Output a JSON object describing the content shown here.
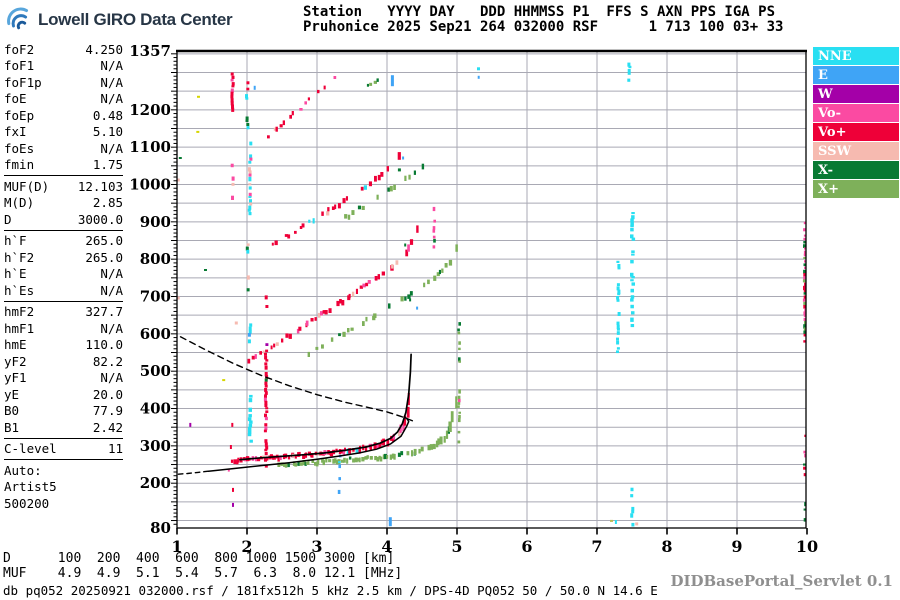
{
  "header": {
    "logo_text": "Lowell GIRO Data Center",
    "info_line1": "Station   YYYY DAY   DDD HHMMSS P1  FFS S AXN PPS IGA PS",
    "info_line2": "Pruhonice 2025 Sep21 264 032000 RSF      1 713 100 03+ 33"
  },
  "params": [
    {
      "label": "foF2",
      "value": "4.250"
    },
    {
      "label": "foF1",
      "value": "N/A"
    },
    {
      "label": "foF1p",
      "value": "N/A"
    },
    {
      "label": "foE",
      "value": "N/A"
    },
    {
      "label": "foEp",
      "value": "0.48"
    },
    {
      "label": "fxI",
      "value": "5.10"
    },
    {
      "label": "foEs",
      "value": "N/A"
    },
    {
      "label": "fmin",
      "value": "1.75"
    },
    {
      "divider": true
    },
    {
      "label": "MUF(D)",
      "value": "12.103"
    },
    {
      "label": "M(D)",
      "value": "2.85"
    },
    {
      "label": "D",
      "value": "3000.0"
    },
    {
      "divider": true
    },
    {
      "label": "h`F",
      "value": "265.0"
    },
    {
      "label": "h`F2",
      "value": "265.0"
    },
    {
      "label": "h`E",
      "value": "N/A"
    },
    {
      "label": "h`Es",
      "value": "N/A"
    },
    {
      "divider": true
    },
    {
      "label": "hmF2",
      "value": "327.7"
    },
    {
      "label": "hmF1",
      "value": "N/A"
    },
    {
      "label": "hmE",
      "value": "110.0"
    },
    {
      "label": "yF2",
      "value": "82.2"
    },
    {
      "label": "yF1",
      "value": "N/A"
    },
    {
      "label": "yE",
      "value": "20.0"
    },
    {
      "label": "B0",
      "value": "77.9"
    },
    {
      "label": "B1",
      "value": "2.42"
    },
    {
      "divider": true
    },
    {
      "label": "C-level",
      "value": "11"
    },
    {
      "divider": true
    },
    {
      "label": "Auto:",
      "value": ""
    },
    {
      "label": "Artist5",
      "value": ""
    },
    {
      "label": "500200",
      "value": ""
    }
  ],
  "legend": [
    {
      "label": "NNE",
      "color": "#29dff2"
    },
    {
      "label": "E",
      "color": "#3fa4f6"
    },
    {
      "label": "W",
      "color": "#a400a8"
    },
    {
      "label": "Vo-",
      "color": "#fb4aa2"
    },
    {
      "label": "Vo+",
      "color": "#ee0038"
    },
    {
      "label": "SSW",
      "color": "#f6bab0"
    },
    {
      "label": "X-",
      "color": "#087a33"
    },
    {
      "label": "X+",
      "color": "#7eb05a"
    }
  ],
  "footer": {
    "d_row": {
      "label": "D",
      "values": [
        "100",
        "200",
        "400",
        "600",
        "800",
        "1000",
        "1500",
        "3000"
      ],
      "unit": "[km]"
    },
    "muf_row": {
      "label": "MUF",
      "values": [
        "4.9",
        "4.9",
        "5.1",
        "5.4",
        "5.7",
        "6.3",
        "8.0",
        "12.1"
      ],
      "unit": "[MHz]"
    },
    "status": "db pq052 20250921 032000.rsf / 181fx512h 5 kHz 2.5 km / DPS-4D PQ052 50 / 50.0 N 14.6 E",
    "servlet": "DIDBasePortal_Servlet 0.1"
  },
  "chart_data": {
    "type": "scatter",
    "title": "Pruhonice ionogram 2025-09-21 032000 UT",
    "xlabel": "[MHz]",
    "ylabel": "[km]",
    "xlim": [
      1,
      10
    ],
    "ylim": [
      80,
      1357
    ],
    "x_ticks": [
      1,
      2,
      3,
      4,
      5,
      6,
      7,
      8,
      9,
      10
    ],
    "y_tick_labels": [
      1357,
      1200,
      1100,
      1000,
      900,
      800,
      700,
      600,
      500,
      400,
      300,
      200,
      80
    ],
    "grid": {
      "x_step_mhz": 1,
      "y_step_km": 50,
      "color": "#a9a9b4"
    },
    "colors": {
      "NNE": "#29dff2",
      "E": "#3fa4f6",
      "W": "#a400a8",
      "Vo-": "#fb4aa2",
      "Vo+": "#ee0038",
      "SSW": "#f6bab0",
      "X-": "#087a33",
      "X+": "#7eb05a",
      "Y": "#d6d600",
      "K": "#b9b955"
    },
    "traces": [
      {
        "name": "F-1hop-O",
        "f": [
          1.78,
          4.315
        ],
        "step": 0.03,
        "base": 261,
        "slope": 10,
        "cusp": [
          4.4,
          14
        ],
        "density": 0.93,
        "colors": [
          [
            "Vo+",
            0.78
          ],
          [
            "Vo-",
            0.12
          ],
          [
            "SSW",
            0.05
          ],
          [
            "NNE",
            0.05
          ]
        ]
      },
      {
        "name": "F-1hop-X",
        "f": [
          2.45,
          4.96
        ],
        "step": 0.033,
        "base": 249,
        "slope": 9,
        "cusp": [
          5.05,
          14
        ],
        "density": 0.85,
        "colors": [
          [
            "X+",
            0.8
          ],
          [
            "X-",
            0.2
          ]
        ]
      },
      {
        "name": "F-2hop-O",
        "f": [
          2.02,
          4.42
        ],
        "step": 0.038,
        "base": 532,
        "slope": 115,
        "cusp": [
          4.55,
          10
        ],
        "density": 0.62,
        "colors": [
          [
            "Vo+",
            0.72
          ],
          [
            "Vo-",
            0.16
          ],
          [
            "SSW",
            0.12
          ]
        ]
      },
      {
        "name": "F-2hop-X",
        "f": [
          2.85,
          5.0
        ],
        "step": 0.042,
        "base": 546,
        "slope": 105,
        "cusp": [
          5.15,
          10
        ],
        "density": 0.5,
        "colors": [
          [
            "X+",
            0.75
          ],
          [
            "X-",
            0.25
          ]
        ]
      },
      {
        "name": "F-3hop-O",
        "f": [
          2.36,
          4.18
        ],
        "step": 0.042,
        "base": 840,
        "slope": 112,
        "cusp": [
          4.35,
          8
        ],
        "density": 0.5,
        "colors": [
          [
            "Vo+",
            0.68
          ],
          [
            "Vo-",
            0.18
          ],
          [
            "SSW",
            0.07
          ],
          [
            "NNE",
            0.07
          ]
        ]
      },
      {
        "name": "F-3hop-X",
        "f": [
          3.3,
          4.5
        ],
        "step": 0.05,
        "base": 900,
        "slope": 112,
        "cusp": [
          4.9,
          8
        ],
        "density": 0.42,
        "colors": [
          [
            "X+",
            0.7
          ],
          [
            "X-",
            0.3
          ]
        ]
      },
      {
        "name": "F-4hop-O",
        "f": [
          2.28,
          3.24
        ],
        "step": 0.045,
        "base": 1135,
        "slope": 163,
        "cusp": null,
        "density": 0.5,
        "colors": [
          [
            "Vo+",
            0.62
          ],
          [
            "Vo-",
            0.22
          ],
          [
            "SSW",
            0.16
          ]
        ]
      },
      {
        "name": "F-4hop-X",
        "f": [
          3.45,
          3.98
        ],
        "step": 0.05,
        "base": 1238,
        "slope": 125,
        "cusp": null,
        "density": 0.5,
        "colors": [
          [
            "X+",
            0.72
          ],
          [
            "X-",
            0.28
          ]
        ]
      }
    ],
    "spread_columns": [
      {
        "f": 1.79,
        "km": [
          1200,
          1300
        ],
        "density": 0.9,
        "w": 3,
        "colors": [
          [
            "Vo+",
            0.85
          ],
          [
            "Vo-",
            0.15
          ]
        ]
      },
      {
        "f": 1.79,
        "km": [
          920,
          1090
        ],
        "density": 0.38,
        "w": 3,
        "colors": [
          [
            "SSW",
            0.5
          ],
          [
            "Vo-",
            0.5
          ]
        ]
      },
      {
        "f": 2.0,
        "km": [
          1150,
          1285
        ],
        "density": 0.6,
        "w": 3,
        "colors": [
          [
            "X-",
            0.5
          ],
          [
            "NNE",
            0.3
          ],
          [
            "Vo+",
            0.2
          ]
        ]
      },
      {
        "f": 2.04,
        "km": [
          920,
          1115
        ],
        "density": 0.7,
        "w": 3,
        "colors": [
          [
            "NNE",
            0.7
          ],
          [
            "SSW",
            0.2
          ],
          [
            "Vo-",
            0.1
          ]
        ]
      },
      {
        "f": 2.01,
        "km": [
          690,
          885
        ],
        "density": 0.35,
        "w": 3,
        "colors": [
          [
            "SSW",
            0.4
          ],
          [
            "X-",
            0.3
          ],
          [
            "NNE",
            0.3
          ]
        ]
      },
      {
        "f": 2.04,
        "km": [
          570,
          645
        ],
        "density": 0.5,
        "w": 3,
        "colors": [
          [
            "NNE",
            0.8
          ],
          [
            "E",
            0.2
          ]
        ]
      },
      {
        "f": 2.04,
        "km": [
          315,
          445
        ],
        "density": 0.85,
        "w": 3.5,
        "colors": [
          [
            "NNE",
            0.9
          ],
          [
            "E",
            0.1
          ]
        ]
      },
      {
        "f": 2.27,
        "km": [
          235,
          575
        ],
        "density": 0.8,
        "w": 3,
        "colors": [
          [
            "Vo+",
            0.8
          ],
          [
            "Vo-",
            0.12
          ],
          [
            "W",
            0.04
          ],
          [
            "X-",
            0.04
          ]
        ]
      },
      {
        "f": 2.27,
        "km": [
          575,
          720
        ],
        "density": 0.25,
        "w": 3,
        "colors": [
          [
            "Vo+",
            0.6
          ],
          [
            "Vo-",
            0.4
          ]
        ]
      },
      {
        "f": 3.32,
        "km": [
          165,
          285
        ],
        "density": 0.5,
        "w": 2.6,
        "colors": [
          [
            "E",
            0.5
          ],
          [
            "NNE",
            0.5
          ]
        ]
      },
      {
        "f": 4.67,
        "km": [
          830,
          940
        ],
        "density": 0.6,
        "w": 2.6,
        "colors": [
          [
            "Vo-",
            0.7
          ],
          [
            "X-",
            0.3
          ]
        ]
      },
      {
        "f": 5.03,
        "km": [
          300,
          640
        ],
        "density": 0.45,
        "w": 2.6,
        "colors": [
          [
            "X+",
            0.75
          ],
          [
            "Vo-",
            0.15
          ],
          [
            "X-",
            0.1
          ]
        ]
      },
      {
        "f": 7.3,
        "km": [
          550,
          830
        ],
        "density": 0.45,
        "w": 3,
        "colors": [
          [
            "NNE",
            0.9
          ],
          [
            "W",
            0.1
          ]
        ]
      },
      {
        "f": 7.5,
        "km": [
          620,
          935
        ],
        "density": 0.6,
        "w": 3.5,
        "colors": [
          [
            "NNE",
            1
          ]
        ]
      },
      {
        "f": 7.46,
        "km": [
          1280,
          1335
        ],
        "density": 0.5,
        "w": 3,
        "colors": [
          [
            "NNE",
            1
          ]
        ]
      },
      {
        "f": 7.5,
        "km": [
          82,
          188
        ],
        "density": 0.5,
        "w": 3,
        "colors": [
          [
            "NNE",
            1
          ]
        ]
      },
      {
        "f": 9.97,
        "km": [
          578,
          900
        ],
        "density": 0.95,
        "w": 3,
        "colors": [
          [
            "Vo-",
            0.4
          ],
          [
            "X-",
            0.25
          ],
          [
            "Vo+",
            0.2
          ],
          [
            "X+",
            0.15
          ]
        ]
      },
      {
        "f": 9.97,
        "km": [
          205,
          330
        ],
        "density": 0.4,
        "w": 3,
        "colors": [
          [
            "Vo-",
            0.4
          ],
          [
            "X-",
            0.3
          ],
          [
            "Vo+",
            0.3
          ]
        ]
      },
      {
        "f": 9.97,
        "km": [
          82,
          158
        ],
        "density": 0.5,
        "w": 3,
        "colors": [
          [
            "Vo+",
            0.5
          ],
          [
            "X-",
            0.5
          ]
        ]
      }
    ],
    "specks": [
      [
        4.07,
        1278,
        "E",
        3,
        11
      ],
      [
        2.11,
        1259,
        "E",
        2,
        4
      ],
      [
        1.3,
        1235,
        "Y",
        3,
        2
      ],
      [
        1.29,
        1141,
        "Y",
        3,
        2
      ],
      [
        1.66,
        476,
        "Y",
        3,
        2
      ],
      [
        7.2,
        99,
        "K",
        3,
        2
      ],
      [
        7.27,
        96,
        "NNE",
        2,
        4
      ],
      [
        7.56,
        91,
        "SSW",
        3,
        3
      ],
      [
        1.04,
        1071,
        "X-",
        3,
        2
      ],
      [
        1.4,
        771,
        "X-",
        3,
        2
      ],
      [
        4.17,
        1039,
        "X-",
        3,
        3
      ],
      [
        4.23,
        1071,
        "E",
        2,
        3
      ],
      [
        1.01,
        1012,
        "SSW",
        3,
        3
      ],
      [
        1.01,
        696,
        "SSW",
        3,
        3
      ],
      [
        1.84,
        629,
        "SSW",
        3,
        3
      ],
      [
        1.19,
        356,
        "W",
        2,
        4
      ],
      [
        1.8,
        142,
        "W",
        2,
        4
      ],
      [
        1.79,
        356,
        "Vo+",
        2,
        4
      ],
      [
        1.77,
        297,
        "Vo+",
        2,
        4
      ],
      [
        1.8,
        182,
        "Vo+",
        2,
        4
      ],
      [
        1.74,
        235,
        "Vo-",
        2,
        3
      ],
      [
        4.04,
        97,
        "E",
        3,
        9
      ],
      [
        4.43,
        669,
        "E",
        2,
        3
      ],
      [
        4.33,
        691,
        "X-",
        2,
        3
      ],
      [
        4.26,
        838,
        "X-",
        2,
        3
      ],
      [
        5.3,
        1310,
        "NNE",
        3,
        3
      ],
      [
        5.31,
        1287,
        "E",
        2,
        3
      ]
    ],
    "curves": {
      "fitted_trace": [
        [
          1.9,
          263
        ],
        [
          2.2,
          268
        ],
        [
          2.5,
          272
        ],
        [
          2.8,
          276
        ],
        [
          3.1,
          281
        ],
        [
          3.4,
          288
        ],
        [
          3.7,
          297
        ],
        [
          3.9,
          307
        ],
        [
          4.05,
          320
        ],
        [
          4.15,
          337
        ],
        [
          4.22,
          360
        ],
        [
          4.27,
          390
        ],
        [
          4.31,
          438
        ],
        [
          4.335,
          498
        ],
        [
          4.345,
          545
        ]
      ],
      "profile_solid": [
        [
          1.45,
          232
        ],
        [
          1.8,
          239
        ],
        [
          2.2,
          247
        ],
        [
          2.6,
          255
        ],
        [
          3.0,
          264
        ],
        [
          3.3,
          272
        ],
        [
          3.6,
          281
        ],
        [
          3.85,
          291
        ],
        [
          4.05,
          305
        ],
        [
          4.2,
          326
        ],
        [
          4.28,
          352
        ],
        [
          4.31,
          365
        ],
        [
          4.29,
          372
        ],
        [
          4.26,
          376
        ]
      ],
      "profile_dashed": [
        [
          1.02,
          224
        ],
        [
          1.15,
          226
        ],
        [
          1.3,
          229
        ],
        [
          1.45,
          232
        ]
      ],
      "muf_dashed": [
        [
          1.05,
          592
        ],
        [
          1.4,
          558
        ],
        [
          1.8,
          521
        ],
        [
          2.2,
          489
        ],
        [
          2.6,
          461
        ],
        [
          3.0,
          437
        ],
        [
          3.4,
          417
        ],
        [
          3.7,
          404
        ],
        [
          4.0,
          391
        ],
        [
          4.2,
          379
        ],
        [
          4.38,
          366
        ]
      ]
    }
  }
}
